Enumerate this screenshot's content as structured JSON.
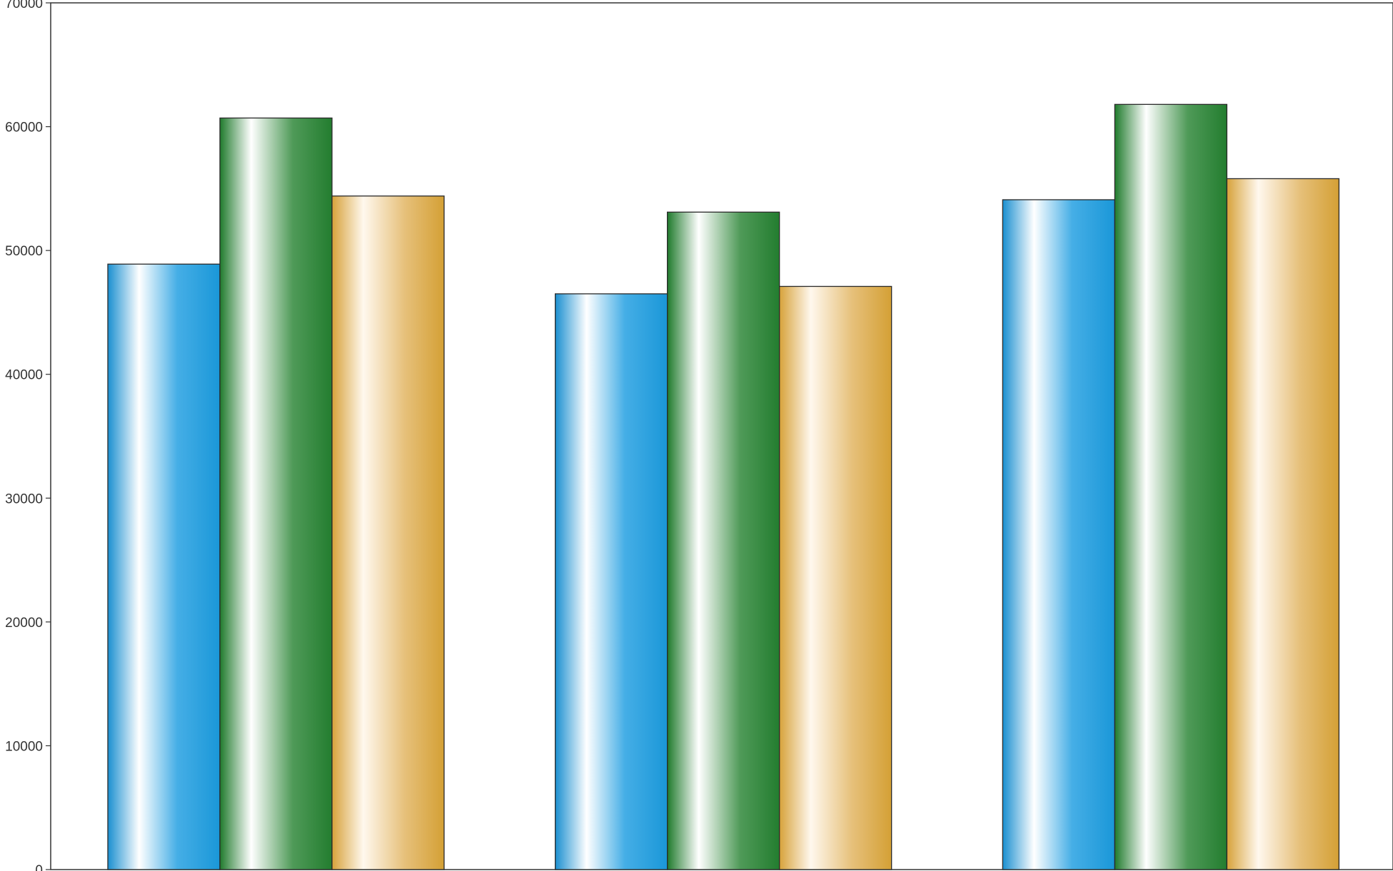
{
  "chart_data": {
    "type": "bar",
    "title": "",
    "xlabel": "",
    "ylabel": "",
    "categories": [
      "",
      "",
      ""
    ],
    "ylim": [
      0,
      70000
    ],
    "yticks": [
      0,
      10000,
      20000,
      30000,
      40000,
      50000,
      60000,
      70000
    ],
    "ytick_labels": [
      "0",
      "10000",
      "20000",
      "30000",
      "40000",
      "50000",
      "60000",
      "70000"
    ],
    "grid": false,
    "legend": "none",
    "series": [
      {
        "values": [
          48900,
          46500,
          54100
        ],
        "color": "#1e9fdc"
      },
      {
        "values": [
          60700,
          53100,
          61800
        ],
        "color": "#2e8a3a"
      },
      {
        "values": [
          54400,
          47100,
          55800
        ],
        "color": "#d9a83a"
      }
    ]
  }
}
